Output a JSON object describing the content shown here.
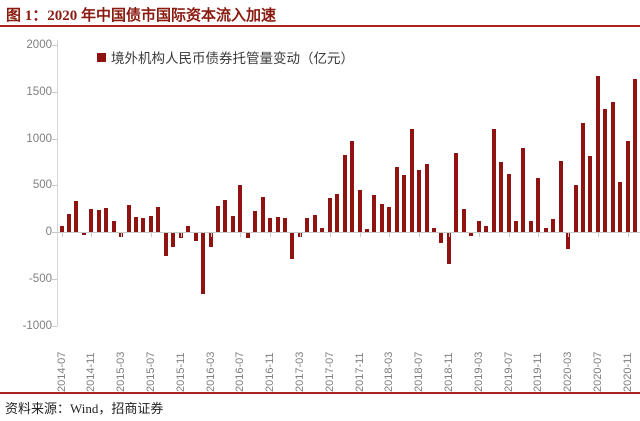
{
  "header": {
    "title": "图 1：2020 年中国债市国际资本流入加速"
  },
  "footer": {
    "source": "资料来源：Wind，招商证券"
  },
  "colors": {
    "bar": "#8E1311",
    "rule": "#A92420",
    "title_text": "#8B1B10",
    "axis_line": "#C9C9C9",
    "tick_label": "#7F7F7F"
  },
  "chart_data": {
    "type": "bar",
    "title": "",
    "legend": "境外机构人民币债券托管量变动（亿元）",
    "legend_position": "top-left",
    "grid": false,
    "xlabel": "",
    "ylabel": "",
    "ylim": [
      -1000,
      2000
    ],
    "yticks": [
      2000,
      1500,
      1000,
      500,
      0,
      -500,
      -1000
    ],
    "xtick_labels": [
      "2014-07",
      "2014-11",
      "2015-03",
      "2015-07",
      "2015-11",
      "2016-03",
      "2016-07",
      "2016-11",
      "2017-03",
      "2017-07",
      "2017-11",
      "2018-03",
      "2018-07",
      "2018-11",
      "2019-03",
      "2019-07",
      "2019-11",
      "2020-03",
      "2020-07",
      "2020-11"
    ],
    "x": [
      "2014-07",
      "2014-08",
      "2014-09",
      "2014-10",
      "2014-11",
      "2014-12",
      "2015-01",
      "2015-02",
      "2015-03",
      "2015-04",
      "2015-05",
      "2015-06",
      "2015-07",
      "2015-08",
      "2015-09",
      "2015-10",
      "2015-11",
      "2015-12",
      "2016-01",
      "2016-02",
      "2016-03",
      "2016-04",
      "2016-05",
      "2016-06",
      "2016-07",
      "2016-08",
      "2016-09",
      "2016-10",
      "2016-11",
      "2016-12",
      "2017-01",
      "2017-02",
      "2017-03",
      "2017-04",
      "2017-05",
      "2017-06",
      "2017-07",
      "2017-08",
      "2017-09",
      "2017-10",
      "2017-11",
      "2017-12",
      "2018-01",
      "2018-02",
      "2018-03",
      "2018-04",
      "2018-05",
      "2018-06",
      "2018-07",
      "2018-08",
      "2018-09",
      "2018-10",
      "2018-11",
      "2018-12",
      "2019-01",
      "2019-02",
      "2019-03",
      "2019-04",
      "2019-05",
      "2019-06",
      "2019-07",
      "2019-08",
      "2019-09",
      "2019-10",
      "2019-11",
      "2019-12",
      "2020-01",
      "2020-02",
      "2020-03",
      "2020-04",
      "2020-05",
      "2020-06",
      "2020-07",
      "2020-08",
      "2020-09",
      "2020-10",
      "2020-11",
      "2020-12"
    ],
    "values": [
      65,
      195,
      330,
      -20,
      245,
      230,
      260,
      120,
      -45,
      290,
      165,
      155,
      170,
      270,
      -245,
      -145,
      -50,
      65,
      -85,
      -655,
      -145,
      280,
      345,
      170,
      505,
      -50,
      225,
      370,
      145,
      165,
      155,
      -280,
      -45,
      145,
      180,
      40,
      360,
      405,
      825,
      975,
      450,
      30,
      400,
      300,
      270,
      690,
      605,
      1100,
      665,
      730,
      40,
      -105,
      -330,
      840,
      245,
      -35,
      120,
      60,
      1100,
      745,
      620,
      120,
      895,
      120,
      575,
      40,
      140,
      760,
      -170,
      505,
      1165,
      815,
      1665,
      1315,
      1390,
      540,
      975,
      1640
    ]
  }
}
